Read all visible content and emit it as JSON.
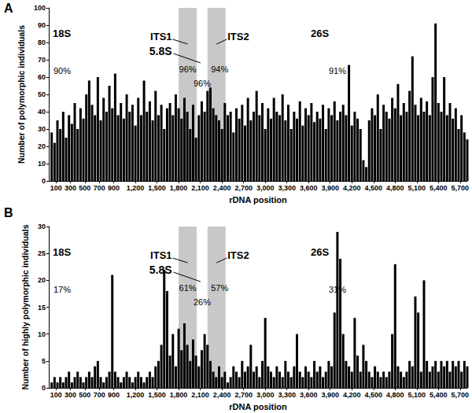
{
  "chart_data": [
    {
      "type": "bar",
      "title": "A",
      "color": "#000000",
      "grid": false,
      "xlabel": "rDNA position",
      "ylabel": "Number of polymorphic individuals",
      "xlim": [
        0,
        5800
      ],
      "xticks": [
        100,
        300,
        500,
        700,
        900,
        1200,
        1500,
        1800,
        2100,
        2400,
        2700,
        3000,
        3300,
        3600,
        3900,
        4200,
        4500,
        4800,
        5100,
        5400,
        5700
      ],
      "ylim": [
        0,
        100
      ],
      "yticks": [
        0,
        10,
        20,
        30,
        40,
        50,
        60,
        70,
        80,
        90,
        100
      ],
      "regions": [
        {
          "name": "18S",
          "start": 0,
          "end": 1800,
          "label": "90%"
        },
        {
          "name": "ITS1",
          "start": 1800,
          "end": 2050,
          "label": "96%",
          "color": "#c8c8c8"
        },
        {
          "name": "5.8S",
          "start": 2050,
          "end": 2200,
          "label": "96%"
        },
        {
          "name": "ITS2",
          "start": 2200,
          "end": 2450,
          "label": "94%",
          "color": "#c8c8c8"
        },
        {
          "name": "26S",
          "start": 2450,
          "end": 5800,
          "label": "91%"
        }
      ],
      "x": [
        40,
        80,
        120,
        160,
        200,
        240,
        280,
        320,
        360,
        400,
        440,
        480,
        520,
        560,
        600,
        640,
        680,
        720,
        760,
        800,
        840,
        880,
        920,
        960,
        1000,
        1040,
        1080,
        1120,
        1160,
        1200,
        1240,
        1280,
        1320,
        1360,
        1400,
        1440,
        1480,
        1520,
        1560,
        1600,
        1640,
        1680,
        1720,
        1760,
        1800,
        1840,
        1880,
        1920,
        1960,
        2000,
        2040,
        2080,
        2120,
        2160,
        2200,
        2240,
        2280,
        2320,
        2360,
        2400,
        2440,
        2480,
        2520,
        2560,
        2600,
        2640,
        2680,
        2720,
        2760,
        2800,
        2840,
        2880,
        2920,
        2960,
        3000,
        3040,
        3080,
        3120,
        3160,
        3200,
        3240,
        3280,
        3320,
        3360,
        3400,
        3440,
        3480,
        3520,
        3560,
        3600,
        3640,
        3680,
        3720,
        3760,
        3800,
        3840,
        3880,
        3920,
        3960,
        4000,
        4040,
        4080,
        4120,
        4160,
        4200,
        4240,
        4280,
        4320,
        4360,
        4400,
        4440,
        4480,
        4520,
        4560,
        4600,
        4640,
        4680,
        4720,
        4760,
        4800,
        4840,
        4880,
        4920,
        4960,
        5000,
        5040,
        5080,
        5120,
        5160,
        5200,
        5240,
        5280,
        5320,
        5360,
        5400,
        5440,
        5480,
        5520,
        5560,
        5600,
        5640,
        5680,
        5720,
        5760,
        5800
      ],
      "values": [
        28,
        22,
        35,
        30,
        40,
        25,
        38,
        33,
        45,
        30,
        42,
        36,
        50,
        58,
        44,
        38,
        60,
        35,
        48,
        40,
        55,
        42,
        62,
        38,
        45,
        36,
        50,
        40,
        44,
        32,
        48,
        38,
        58,
        40,
        46,
        35,
        52,
        38,
        44,
        30,
        42,
        45,
        38,
        50,
        42,
        36,
        48,
        40,
        30,
        44,
        25,
        38,
        46,
        40,
        52,
        54,
        42,
        38,
        35,
        30,
        45,
        38,
        40,
        28,
        42,
        36,
        44,
        32,
        48,
        35,
        40,
        52,
        38,
        45,
        30,
        42,
        36,
        48,
        40,
        38,
        50,
        35,
        44,
        30,
        40,
        36,
        46,
        32,
        42,
        38,
        45,
        34,
        40,
        36,
        44,
        30,
        42,
        38,
        46,
        35,
        40,
        44,
        38,
        67,
        32,
        40,
        36,
        30,
        12,
        8,
        35,
        42,
        38,
        50,
        30,
        44,
        40,
        36,
        48,
        42,
        56,
        38,
        45,
        40,
        52,
        72,
        44,
        38,
        48,
        40,
        46,
        38,
        60,
        91,
        45,
        40,
        60,
        38,
        45,
        36,
        42,
        30,
        38,
        28,
        24
      ]
    },
    {
      "type": "bar",
      "title": "B",
      "color": "#000000",
      "grid": false,
      "xlabel": "rDNA position",
      "ylabel": "Number of highly polymorphic individuals",
      "xlim": [
        0,
        5800
      ],
      "xticks": [
        100,
        300,
        500,
        700,
        900,
        1200,
        1500,
        1800,
        2100,
        2400,
        2700,
        3000,
        3300,
        3600,
        3900,
        4200,
        4500,
        4800,
        5100,
        5400,
        5700
      ],
      "ylim": [
        0,
        30
      ],
      "yticks": [
        0,
        5,
        10,
        15,
        20,
        25,
        30
      ],
      "regions": [
        {
          "name": "18S",
          "start": 0,
          "end": 1800,
          "label": "17%"
        },
        {
          "name": "ITS1",
          "start": 1800,
          "end": 2050,
          "label": "61%",
          "color": "#c8c8c8"
        },
        {
          "name": "5.8S",
          "start": 2050,
          "end": 2200,
          "label": "26%"
        },
        {
          "name": "ITS2",
          "start": 2200,
          "end": 2450,
          "label": "57%",
          "color": "#c8c8c8"
        },
        {
          "name": "26S",
          "start": 2450,
          "end": 5800,
          "label": "31%"
        }
      ],
      "x": [
        40,
        80,
        120,
        160,
        200,
        240,
        280,
        320,
        360,
        400,
        440,
        480,
        520,
        560,
        600,
        640,
        680,
        720,
        760,
        800,
        840,
        880,
        920,
        960,
        1000,
        1040,
        1080,
        1120,
        1160,
        1200,
        1240,
        1280,
        1320,
        1360,
        1400,
        1440,
        1480,
        1520,
        1560,
        1600,
        1640,
        1680,
        1720,
        1760,
        1800,
        1840,
        1880,
        1920,
        1960,
        2000,
        2040,
        2080,
        2120,
        2160,
        2200,
        2240,
        2280,
        2320,
        2360,
        2400,
        2440,
        2480,
        2520,
        2560,
        2600,
        2640,
        2680,
        2720,
        2760,
        2800,
        2840,
        2880,
        2920,
        2960,
        3000,
        3040,
        3080,
        3120,
        3160,
        3200,
        3240,
        3280,
        3320,
        3360,
        3400,
        3440,
        3480,
        3520,
        3560,
        3600,
        3640,
        3680,
        3720,
        3760,
        3800,
        3840,
        3880,
        3920,
        3960,
        4000,
        4040,
        4080,
        4120,
        4160,
        4200,
        4240,
        4280,
        4320,
        4360,
        4400,
        4440,
        4480,
        4520,
        4560,
        4600,
        4640,
        4680,
        4720,
        4760,
        4800,
        4840,
        4880,
        4920,
        4960,
        5000,
        5040,
        5080,
        5120,
        5160,
        5200,
        5240,
        5280,
        5320,
        5360,
        5400,
        5440,
        5480,
        5520,
        5560,
        5600,
        5640,
        5680,
        5720,
        5760,
        5800
      ],
      "values": [
        1,
        2,
        1,
        2,
        1,
        2,
        3,
        1,
        2,
        3,
        2,
        1,
        2,
        3,
        2,
        4,
        5,
        2,
        1,
        2,
        3,
        21,
        3,
        2,
        1,
        2,
        3,
        2,
        1,
        2,
        3,
        2,
        1,
        2,
        3,
        2,
        4,
        5,
        8,
        22,
        18,
        6,
        10,
        4,
        11,
        7,
        12,
        8,
        5,
        9,
        6,
        4,
        7,
        10,
        8,
        5,
        3,
        2,
        4,
        2,
        3,
        1,
        2,
        4,
        3,
        2,
        5,
        3,
        4,
        8,
        3,
        4,
        2,
        5,
        13,
        4,
        3,
        2,
        4,
        3,
        2,
        5,
        3,
        2,
        4,
        10,
        3,
        2,
        4,
        3,
        2,
        5,
        3,
        4,
        2,
        3,
        5,
        4,
        14,
        29,
        24,
        10,
        5,
        4,
        3,
        13,
        6,
        3,
        8,
        5,
        3,
        2,
        4,
        3,
        2,
        3,
        2,
        3,
        10,
        23,
        4,
        3,
        2,
        3,
        5,
        4,
        17,
        14,
        3,
        20,
        5,
        3,
        4,
        5,
        3,
        5,
        4,
        5,
        3,
        5,
        4,
        5,
        3,
        5,
        4
      ]
    }
  ]
}
